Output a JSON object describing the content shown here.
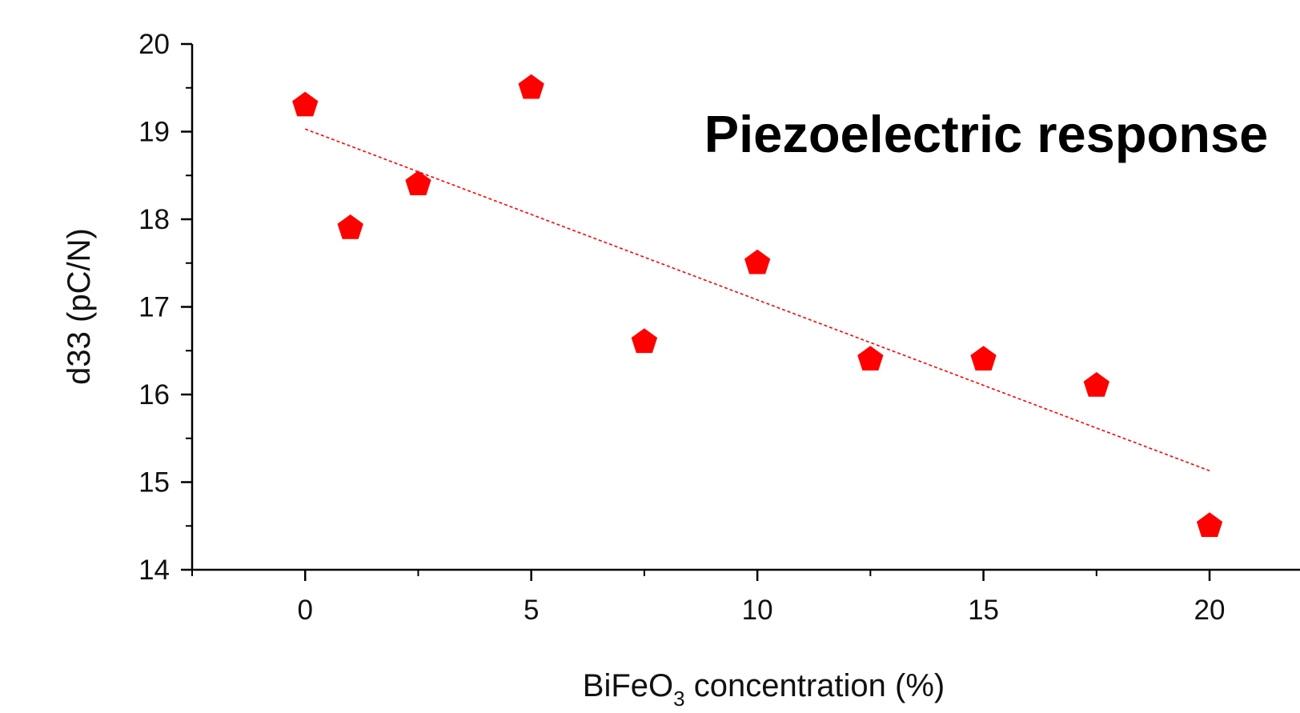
{
  "chart_data": {
    "type": "scatter",
    "title": "Piezoelectric response",
    "xlabel": {
      "base": "BiFeO",
      "sub": "3",
      "rest": " concentration (%)"
    },
    "ylabel": "d33 (pC/N)",
    "xlim": [
      -2.5,
      22
    ],
    "ylim": [
      14,
      20
    ],
    "xticks": [
      0,
      5,
      10,
      15,
      20
    ],
    "xticks_minor": [
      -2.5,
      2.5,
      7.5,
      12.5,
      17.5
    ],
    "yticks": [
      14,
      15,
      16,
      17,
      18,
      19,
      20
    ],
    "yticks_minor": [
      14.5,
      15.5,
      16.5,
      17.5,
      18.5,
      19.5
    ],
    "series": [
      {
        "marker": "pentagon",
        "color": "#ff0000",
        "points": [
          {
            "x": 0,
            "y": 19.3
          },
          {
            "x": 1,
            "y": 17.9
          },
          {
            "x": 2.5,
            "y": 18.4
          },
          {
            "x": 5,
            "y": 19.5
          },
          {
            "x": 7.5,
            "y": 16.6
          },
          {
            "x": 10,
            "y": 17.5
          },
          {
            "x": 12.5,
            "y": 16.4
          },
          {
            "x": 15,
            "y": 16.4
          },
          {
            "x": 17.5,
            "y": 16.1
          },
          {
            "x": 20,
            "y": 14.5
          }
        ]
      }
    ],
    "trendline": {
      "style": "dotted",
      "color": "#ff0000",
      "x": [
        0,
        20
      ],
      "y": [
        19.03,
        15.13
      ]
    },
    "grid": false,
    "legend": "none"
  }
}
